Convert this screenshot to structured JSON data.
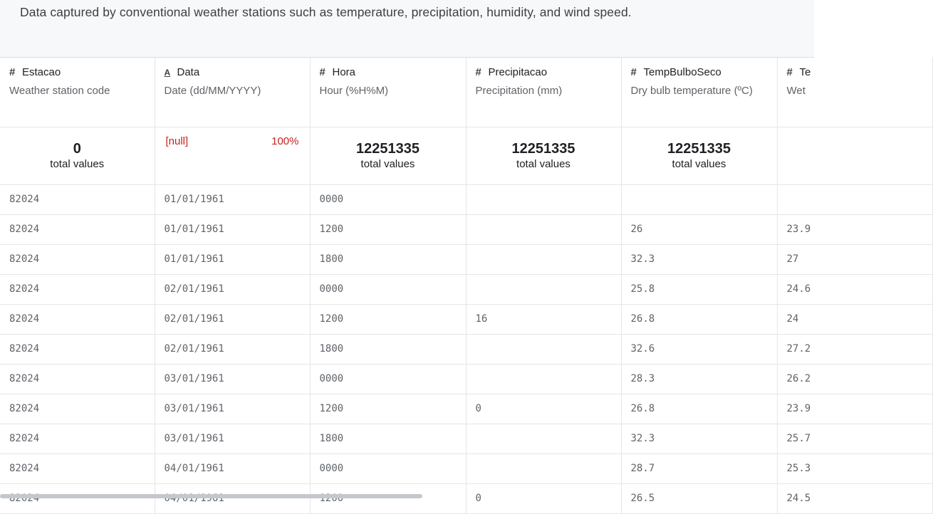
{
  "dataset": {
    "description": "Data captured by conventional weather stations such as temperature, precipitation, humidity, and wind speed."
  },
  "columns": [
    {
      "type_icon": "#",
      "name": "Estacao",
      "description": "Weather station code",
      "stat_value": "0",
      "stat_label": "total values"
    },
    {
      "type_icon": "A",
      "name": "Data",
      "description": "Date (dd/MM/YYYY)",
      "null_label": "[null]",
      "null_pct": "100%"
    },
    {
      "type_icon": "#",
      "name": "Hora",
      "description": "Hour (%H%M)",
      "stat_value": "12251335",
      "stat_label": "total values"
    },
    {
      "type_icon": "#",
      "name": "Precipitacao",
      "description": "Precipitation (mm)",
      "stat_value": "12251335",
      "stat_label": "total values"
    },
    {
      "type_icon": "#",
      "name": "TempBulboSeco",
      "description": "Dry bulb temperature (ºC)",
      "stat_value": "12251335",
      "stat_label": "total values"
    },
    {
      "type_icon": "#",
      "name": "Te",
      "description": "Wet",
      "stat_value": "",
      "stat_label": ""
    }
  ],
  "rows": [
    [
      "82024",
      "01/01/1961",
      "0000",
      "",
      "",
      ""
    ],
    [
      "82024",
      "01/01/1961",
      "1200",
      "",
      "26",
      "23.9"
    ],
    [
      "82024",
      "01/01/1961",
      "1800",
      "",
      "32.3",
      "27"
    ],
    [
      "82024",
      "02/01/1961",
      "0000",
      "",
      "25.8",
      "24.6"
    ],
    [
      "82024",
      "02/01/1961",
      "1200",
      "16",
      "26.8",
      "24"
    ],
    [
      "82024",
      "02/01/1961",
      "1800",
      "",
      "32.6",
      "27.2"
    ],
    [
      "82024",
      "03/01/1961",
      "0000",
      "",
      "28.3",
      "26.2"
    ],
    [
      "82024",
      "03/01/1961",
      "1200",
      "0",
      "26.8",
      "23.9"
    ],
    [
      "82024",
      "03/01/1961",
      "1800",
      "",
      "32.3",
      "25.7"
    ],
    [
      "82024",
      "04/01/1961",
      "0000",
      "",
      "28.7",
      "25.3"
    ],
    [
      "82024",
      "04/01/1961",
      "1200",
      "0",
      "26.5",
      "24.5"
    ]
  ]
}
